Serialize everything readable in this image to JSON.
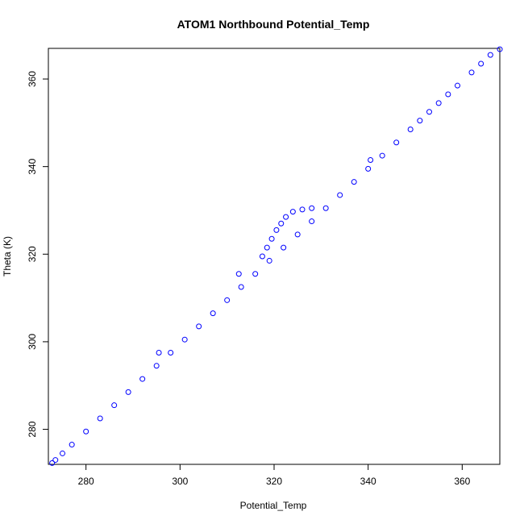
{
  "chart_data": {
    "type": "scatter",
    "title": "ATOM1 Northbound Potential_Temp",
    "xlabel": "Potential_Temp",
    "ylabel": "Theta (K)",
    "xlim": [
      272,
      368
    ],
    "ylim": [
      272,
      367
    ],
    "x_ticks": [
      280,
      300,
      320,
      340,
      360
    ],
    "y_ticks": [
      280,
      300,
      320,
      340,
      360
    ],
    "grid": false,
    "legend": "none",
    "marker": "open-circle",
    "color": "#0000ff",
    "series": [
      {
        "x": [
          272.8,
          273.5,
          275,
          277,
          280,
          283,
          286,
          289,
          292,
          295,
          298,
          301,
          304,
          307,
          310,
          313,
          316,
          319,
          322,
          325,
          328,
          331,
          334,
          337,
          340,
          343,
          346,
          349,
          351,
          353,
          355,
          357,
          359,
          362,
          364,
          366,
          368,
          317.5,
          318.5,
          319.5,
          320.5,
          321.5,
          322.5,
          324,
          326,
          328,
          340.5,
          295.5,
          312.5
        ],
        "y": [
          272.3,
          273,
          274.5,
          276.5,
          279.5,
          282.5,
          285.5,
          288.5,
          291.5,
          294.5,
          297.5,
          300.5,
          303.5,
          306.5,
          309.5,
          312.5,
          315.5,
          318.5,
          321.5,
          324.5,
          327.5,
          330.5,
          333.5,
          336.5,
          339.5,
          342.5,
          345.5,
          348.5,
          350.5,
          352.5,
          354.5,
          356.5,
          358.5,
          361.5,
          363.5,
          365.5,
          366.8,
          319.5,
          321.5,
          323.5,
          325.5,
          327,
          328.5,
          329.7,
          330.2,
          330.5,
          341.5,
          297.5,
          315.5
        ]
      }
    ]
  }
}
